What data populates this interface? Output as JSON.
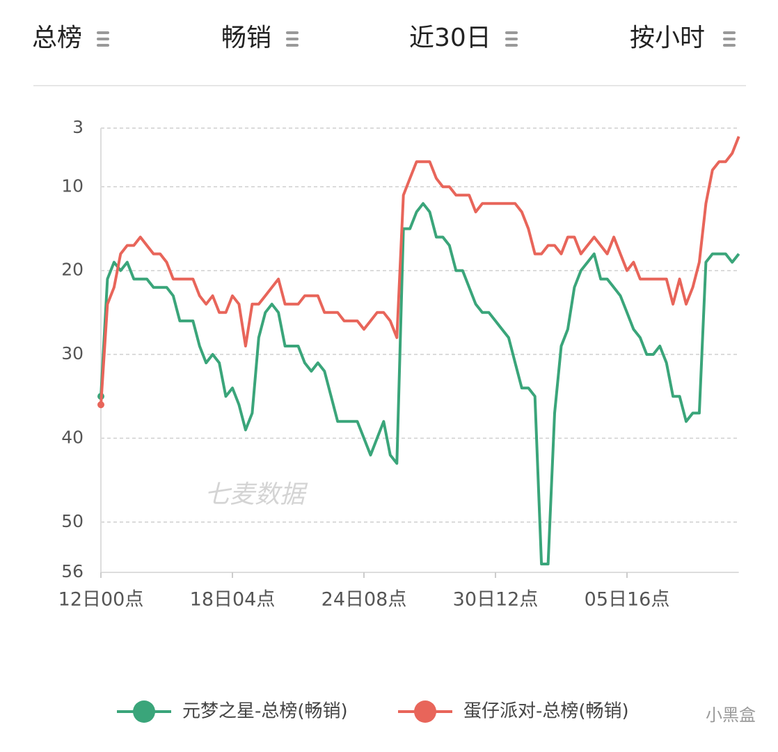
{
  "header": {
    "items": [
      "总榜",
      "畅销",
      "近30日",
      "按小时"
    ]
  },
  "chart_data": {
    "type": "line",
    "categories": [
      "12日00点",
      null,
      null,
      null,
      null,
      null,
      null,
      null,
      null,
      null,
      null,
      null,
      null,
      null,
      null,
      null,
      null,
      null,
      null,
      null,
      "18日04点",
      null,
      null,
      null,
      null,
      null,
      null,
      null,
      null,
      null,
      null,
      null,
      null,
      null,
      null,
      null,
      null,
      null,
      null,
      null,
      "24日08点",
      null,
      null,
      null,
      null,
      null,
      null,
      null,
      null,
      null,
      null,
      null,
      null,
      null,
      null,
      null,
      null,
      null,
      null,
      null,
      "30日12点",
      null,
      null,
      null,
      null,
      null,
      null,
      null,
      null,
      null,
      null,
      null,
      null,
      null,
      null,
      null,
      null,
      null,
      null,
      null,
      "05日16点",
      null,
      null,
      null,
      null,
      null,
      null,
      null,
      null,
      null,
      null,
      null,
      null,
      null,
      null,
      null,
      null,
      null
    ],
    "series": [
      {
        "name": "元梦之星-总榜(畅销)",
        "color": "#3aa57a",
        "values": [
          35,
          21,
          19,
          20,
          19,
          21,
          21,
          21,
          22,
          22,
          22,
          23,
          26,
          26,
          26,
          29,
          31,
          30,
          31,
          35,
          34,
          36,
          39,
          37,
          28,
          25,
          24,
          25,
          29,
          29,
          29,
          31,
          32,
          31,
          32,
          35,
          38,
          38,
          38,
          38,
          40,
          42,
          40,
          38,
          42,
          43,
          15,
          15,
          13,
          12,
          13,
          16,
          16,
          17,
          20,
          20,
          22,
          24,
          25,
          25,
          26,
          27,
          28,
          31,
          34,
          34,
          35,
          55,
          55,
          37,
          29,
          27,
          22,
          20,
          19,
          18,
          21,
          21,
          22,
          23,
          25,
          27,
          28,
          30,
          30,
          29,
          31,
          35,
          35,
          38,
          37,
          37,
          19,
          18,
          18,
          18,
          19,
          18
        ]
      },
      {
        "name": "蛋仔派对-总榜(畅销)",
        "color": "#e8655a",
        "values": [
          36,
          24,
          22,
          18,
          17,
          17,
          16,
          17,
          18,
          18,
          19,
          21,
          21,
          21,
          21,
          23,
          24,
          23,
          25,
          25,
          23,
          24,
          29,
          24,
          24,
          23,
          22,
          21,
          24,
          24,
          24,
          23,
          23,
          23,
          25,
          25,
          25,
          26,
          26,
          26,
          27,
          26,
          25,
          25,
          26,
          28,
          11,
          9,
          7,
          7,
          7,
          9,
          10,
          10,
          11,
          11,
          11,
          13,
          12,
          12,
          12,
          12,
          12,
          12,
          13,
          15,
          18,
          18,
          17,
          17,
          18,
          16,
          16,
          18,
          17,
          16,
          17,
          18,
          16,
          18,
          20,
          19,
          21,
          21,
          21,
          21,
          21,
          24,
          21,
          24,
          22,
          19,
          12,
          8,
          7,
          7,
          6,
          4
        ]
      }
    ],
    "ylim": [
      3,
      56
    ],
    "y_inverted": true,
    "yticks": [
      3,
      10,
      20,
      30,
      40,
      50,
      56
    ],
    "grid": true,
    "annotations": [
      "七麦数据",
      "小黑盒"
    ]
  }
}
